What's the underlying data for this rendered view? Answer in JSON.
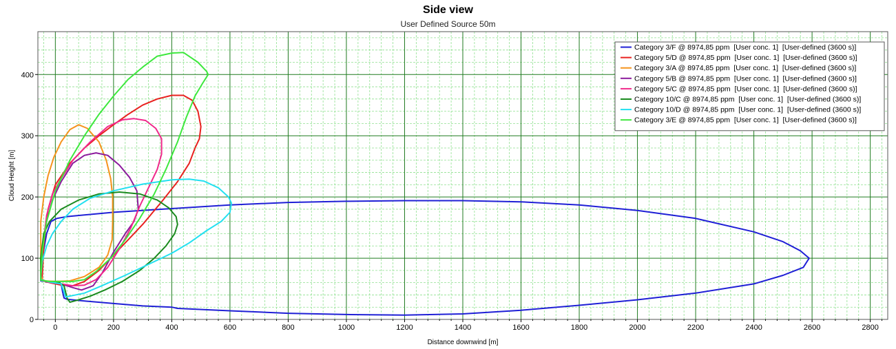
{
  "chart_data": {
    "type": "line",
    "title": "Side view",
    "subtitle": "User Defined Source 50m",
    "xlabel": "Distance downwind [m]",
    "ylabel": "Cloud Height [m]",
    "xlim": [
      -60,
      2860
    ],
    "ylim": [
      0,
      470
    ],
    "xticks": [
      0,
      200,
      400,
      600,
      800,
      1000,
      1200,
      1400,
      1600,
      1800,
      2000,
      2200,
      2400,
      2600,
      2800
    ],
    "yticks": [
      0,
      100,
      200,
      300,
      400
    ],
    "grid": "major dark green solid, minor light green dashed",
    "legend_position": "top-right",
    "series": [
      {
        "name": "Category 3/F @ 8974,85 ppm  [User conc. 1]  [User-defined (3600 s)]",
        "color": "#1f1fd6",
        "points": [
          [
            -50,
            65
          ],
          [
            -45,
            100
          ],
          [
            -30,
            140
          ],
          [
            -15,
            160
          ],
          [
            5,
            165
          ],
          [
            40,
            168
          ],
          [
            200,
            175
          ],
          [
            400,
            181
          ],
          [
            600,
            187
          ],
          [
            800,
            191
          ],
          [
            1000,
            193
          ],
          [
            1200,
            194
          ],
          [
            1400,
            194
          ],
          [
            1600,
            192
          ],
          [
            1800,
            187
          ],
          [
            2000,
            178
          ],
          [
            2200,
            165
          ],
          [
            2400,
            143
          ],
          [
            2500,
            127
          ],
          [
            2560,
            112
          ],
          [
            2590,
            100
          ],
          [
            2570,
            85
          ],
          [
            2500,
            72
          ],
          [
            2400,
            58
          ],
          [
            2200,
            43
          ],
          [
            2000,
            32
          ],
          [
            1800,
            23
          ],
          [
            1600,
            15
          ],
          [
            1400,
            9
          ],
          [
            1200,
            7
          ],
          [
            1000,
            8
          ],
          [
            800,
            10
          ],
          [
            600,
            14
          ],
          [
            420,
            18
          ],
          [
            400,
            20
          ],
          [
            300,
            22
          ],
          [
            200,
            26
          ],
          [
            100,
            30
          ],
          [
            40,
            33
          ],
          [
            30,
            35
          ],
          [
            25,
            45
          ],
          [
            20,
            58
          ],
          [
            10,
            62
          ],
          [
            -30,
            62
          ],
          [
            -50,
            63
          ],
          [
            -50,
            65
          ]
        ]
      },
      {
        "name": "Category 5/D @ 8974,85 ppm  [User conc. 1]  [User-defined (3600 s)]",
        "color": "#e8201e",
        "points": [
          [
            -45,
            70
          ],
          [
            -40,
            120
          ],
          [
            -25,
            180
          ],
          [
            0,
            220
          ],
          [
            50,
            255
          ],
          [
            100,
            280
          ],
          [
            150,
            300
          ],
          [
            200,
            318
          ],
          [
            250,
            335
          ],
          [
            300,
            350
          ],
          [
            350,
            360
          ],
          [
            400,
            366
          ],
          [
            440,
            366
          ],
          [
            470,
            358
          ],
          [
            490,
            340
          ],
          [
            500,
            315
          ],
          [
            495,
            295
          ],
          [
            480,
            280
          ],
          [
            460,
            255
          ],
          [
            420,
            225
          ],
          [
            370,
            195
          ],
          [
            300,
            155
          ],
          [
            250,
            130
          ],
          [
            200,
            105
          ],
          [
            150,
            80
          ],
          [
            100,
            62
          ],
          [
            60,
            55
          ],
          [
            20,
            56
          ],
          [
            -20,
            60
          ],
          [
            -45,
            65
          ],
          [
            -45,
            70
          ]
        ]
      },
      {
        "name": "Category 3/A @ 8974,85 ppm  [User conc. 1]  [User-defined (3600 s)]",
        "color": "#f5931c",
        "points": [
          [
            -50,
            70
          ],
          [
            -50,
            160
          ],
          [
            -40,
            200
          ],
          [
            -25,
            235
          ],
          [
            -5,
            265
          ],
          [
            20,
            290
          ],
          [
            50,
            310
          ],
          [
            80,
            318
          ],
          [
            110,
            312
          ],
          [
            150,
            290
          ],
          [
            175,
            260
          ],
          [
            190,
            230
          ],
          [
            197,
            200
          ],
          [
            197,
            160
          ],
          [
            195,
            130
          ],
          [
            180,
            105
          ],
          [
            150,
            85
          ],
          [
            100,
            70
          ],
          [
            50,
            63
          ],
          [
            0,
            62
          ],
          [
            -40,
            63
          ],
          [
            -50,
            70
          ]
        ]
      },
      {
        "name": "Category 5/B @ 8974,85 ppm  [User conc. 1]  [User-defined (3600 s)]",
        "color": "#8b1a9c",
        "points": [
          [
            -50,
            70
          ],
          [
            -45,
            110
          ],
          [
            -30,
            160
          ],
          [
            -10,
            195
          ],
          [
            20,
            225
          ],
          [
            60,
            255
          ],
          [
            100,
            268
          ],
          [
            140,
            272
          ],
          [
            180,
            268
          ],
          [
            220,
            252
          ],
          [
            255,
            232
          ],
          [
            280,
            210
          ],
          [
            285,
            180
          ],
          [
            270,
            160
          ],
          [
            240,
            140
          ],
          [
            200,
            110
          ],
          [
            160,
            75
          ],
          [
            130,
            55
          ],
          [
            90,
            48
          ],
          [
            60,
            52
          ],
          [
            20,
            58
          ],
          [
            -30,
            61
          ],
          [
            -50,
            65
          ],
          [
            -50,
            70
          ]
        ]
      },
      {
        "name": "Category 5/C @ 8974,85 ppm  [User conc. 1]  [User-defined (3600 s)]",
        "color": "#f0288a",
        "points": [
          [
            -50,
            70
          ],
          [
            -45,
            110
          ],
          [
            -30,
            170
          ],
          [
            -10,
            205
          ],
          [
            20,
            230
          ],
          [
            60,
            260
          ],
          [
            120,
            290
          ],
          [
            180,
            315
          ],
          [
            230,
            326
          ],
          [
            270,
            328
          ],
          [
            310,
            325
          ],
          [
            345,
            312
          ],
          [
            365,
            295
          ],
          [
            365,
            270
          ],
          [
            350,
            245
          ],
          [
            320,
            215
          ],
          [
            290,
            185
          ],
          [
            260,
            150
          ],
          [
            220,
            115
          ],
          [
            180,
            85
          ],
          [
            140,
            65
          ],
          [
            100,
            56
          ],
          [
            60,
            55
          ],
          [
            20,
            58
          ],
          [
            -30,
            61
          ],
          [
            -50,
            65
          ],
          [
            -50,
            70
          ]
        ]
      },
      {
        "name": "Category 10/C @ 8974,85 ppm  [User conc. 1]  [User-defined (3600 s)]",
        "color": "#1a8a1e",
        "points": [
          [
            -50,
            70
          ],
          [
            -50,
            100
          ],
          [
            -40,
            140
          ],
          [
            -20,
            160
          ],
          [
            20,
            180
          ],
          [
            80,
            195
          ],
          [
            150,
            205
          ],
          [
            220,
            208
          ],
          [
            290,
            205
          ],
          [
            350,
            195
          ],
          [
            390,
            182
          ],
          [
            415,
            168
          ],
          [
            420,
            155
          ],
          [
            410,
            140
          ],
          [
            380,
            120
          ],
          [
            340,
            100
          ],
          [
            290,
            80
          ],
          [
            230,
            62
          ],
          [
            170,
            48
          ],
          [
            120,
            38
          ],
          [
            80,
            32
          ],
          [
            50,
            28
          ],
          [
            40,
            35
          ],
          [
            30,
            55
          ],
          [
            10,
            61
          ],
          [
            -30,
            62
          ],
          [
            -50,
            65
          ],
          [
            -50,
            70
          ]
        ]
      },
      {
        "name": "Category 10/D @ 8974,85 ppm  [User conc. 1]  [User-defined (3600 s)]",
        "color": "#22e0f0",
        "points": [
          [
            -50,
            70
          ],
          [
            -45,
            95
          ],
          [
            -30,
            120
          ],
          [
            -10,
            140
          ],
          [
            20,
            160
          ],
          [
            60,
            180
          ],
          [
            120,
            198
          ],
          [
            200,
            210
          ],
          [
            300,
            221
          ],
          [
            400,
            228
          ],
          [
            460,
            229
          ],
          [
            510,
            226
          ],
          [
            560,
            215
          ],
          [
            595,
            200
          ],
          [
            605,
            190
          ],
          [
            600,
            175
          ],
          [
            570,
            160
          ],
          [
            520,
            145
          ],
          [
            460,
            125
          ],
          [
            400,
            108
          ],
          [
            320,
            90
          ],
          [
            240,
            72
          ],
          [
            160,
            55
          ],
          [
            100,
            43
          ],
          [
            50,
            38
          ],
          [
            35,
            37
          ],
          [
            30,
            45
          ],
          [
            20,
            58
          ],
          [
            -20,
            61
          ],
          [
            -50,
            65
          ],
          [
            -50,
            70
          ]
        ]
      },
      {
        "name": "Category 3/E @ 8974,85 ppm  [User conc. 1]  [User-defined (3600 s)]",
        "color": "#3de83d",
        "points": [
          [
            -50,
            70
          ],
          [
            -45,
            110
          ],
          [
            -30,
            160
          ],
          [
            0,
            210
          ],
          [
            50,
            260
          ],
          [
            100,
            300
          ],
          [
            150,
            335
          ],
          [
            200,
            365
          ],
          [
            250,
            392
          ],
          [
            300,
            412
          ],
          [
            350,
            430
          ],
          [
            400,
            435
          ],
          [
            440,
            436
          ],
          [
            490,
            420
          ],
          [
            520,
            405
          ],
          [
            525,
            400
          ],
          [
            505,
            385
          ],
          [
            480,
            365
          ],
          [
            450,
            330
          ],
          [
            420,
            290
          ],
          [
            380,
            245
          ],
          [
            340,
            205
          ],
          [
            290,
            165
          ],
          [
            240,
            130
          ],
          [
            190,
            100
          ],
          [
            140,
            78
          ],
          [
            100,
            65
          ],
          [
            60,
            62
          ],
          [
            20,
            62
          ],
          [
            -20,
            62
          ],
          [
            -50,
            64
          ],
          [
            -50,
            70
          ]
        ]
      }
    ]
  }
}
